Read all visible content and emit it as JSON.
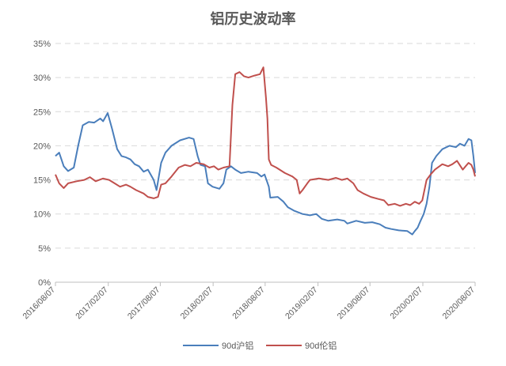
{
  "chart_data": {
    "type": "line",
    "title": "铝历史波动率",
    "xlabel": "",
    "ylabel": "",
    "ylim": [
      0,
      35
    ],
    "y_tick_labels": [
      "0%",
      "5%",
      "10%",
      "15%",
      "20%",
      "25%",
      "30%",
      "35%"
    ],
    "x_range": [
      "2016/08/07",
      "2020/08/07"
    ],
    "x_tick_labels": [
      "2016/08/07",
      "2017/02/07",
      "2017/08/07",
      "2018/02/07",
      "2018/08/07",
      "2019/02/07",
      "2019/08/07",
      "2020/02/07",
      "2020/08/07"
    ],
    "grid": "horizontal-dashed",
    "legend_position": "bottom",
    "series": [
      {
        "name": "90d沪铝",
        "color": "#4a7ebb",
        "points": [
          [
            "2016/08/07",
            18.5
          ],
          [
            "2016/08/20",
            19.0
          ],
          [
            "2016/09/05",
            17.0
          ],
          [
            "2016/09/20",
            16.3
          ],
          [
            "2016/10/10",
            16.8
          ],
          [
            "2016/10/25",
            20.0
          ],
          [
            "2016/11/10",
            23.0
          ],
          [
            "2016/12/01",
            23.5
          ],
          [
            "2016/12/20",
            23.4
          ],
          [
            "2017/01/10",
            24.0
          ],
          [
            "2017/01/20",
            23.6
          ],
          [
            "2017/02/05",
            24.8
          ],
          [
            "2017/02/20",
            22.5
          ],
          [
            "2017/03/10",
            19.5
          ],
          [
            "2017/03/25",
            18.5
          ],
          [
            "2017/04/10",
            18.3
          ],
          [
            "2017/04/25",
            18.0
          ],
          [
            "2017/05/10",
            17.3
          ],
          [
            "2017/05/25",
            17.0
          ],
          [
            "2017/06/10",
            16.2
          ],
          [
            "2017/06/25",
            16.5
          ],
          [
            "2017/07/15",
            15.0
          ],
          [
            "2017/07/25",
            13.5
          ],
          [
            "2017/08/10",
            17.5
          ],
          [
            "2017/08/25",
            19.0
          ],
          [
            "2017/09/15",
            20.0
          ],
          [
            "2017/10/15",
            20.8
          ],
          [
            "2017/11/15",
            21.2
          ],
          [
            "2017/12/01",
            21.0
          ],
          [
            "2017/12/15",
            18.5
          ],
          [
            "2017/12/25",
            17.2
          ],
          [
            "2018/01/10",
            17.0
          ],
          [
            "2018/01/20",
            14.5
          ],
          [
            "2018/02/05",
            14.0
          ],
          [
            "2018/03/01",
            13.7
          ],
          [
            "2018/03/15",
            14.5
          ],
          [
            "2018/03/25",
            16.5
          ],
          [
            "2018/04/10",
            17.0
          ],
          [
            "2018/04/25",
            16.5
          ],
          [
            "2018/05/15",
            16.0
          ],
          [
            "2018/06/10",
            16.2
          ],
          [
            "2018/07/10",
            16.0
          ],
          [
            "2018/07/25",
            15.5
          ],
          [
            "2018/08/05",
            15.8
          ],
          [
            "2018/08/20",
            14.0
          ],
          [
            "2018/08/25",
            12.4
          ],
          [
            "2018/09/20",
            12.5
          ],
          [
            "2018/10/10",
            11.8
          ],
          [
            "2018/10/25",
            11.0
          ],
          [
            "2018/11/15",
            10.5
          ],
          [
            "2018/12/15",
            10.0
          ],
          [
            "2019/01/10",
            9.8
          ],
          [
            "2019/02/01",
            10.0
          ],
          [
            "2019/02/20",
            9.3
          ],
          [
            "2019/03/15",
            9.0
          ],
          [
            "2019/04/15",
            9.2
          ],
          [
            "2019/05/10",
            9.0
          ],
          [
            "2019/05/20",
            8.6
          ],
          [
            "2019/06/20",
            9.0
          ],
          [
            "2019/07/20",
            8.7
          ],
          [
            "2019/08/15",
            8.8
          ],
          [
            "2019/09/10",
            8.5
          ],
          [
            "2019/09/30",
            8.0
          ],
          [
            "2019/10/20",
            7.8
          ],
          [
            "2019/11/15",
            7.6
          ],
          [
            "2019/12/15",
            7.5
          ],
          [
            "2020/01/01",
            7.0
          ],
          [
            "2020/01/10",
            7.5
          ],
          [
            "2020/01/20",
            8.0
          ],
          [
            "2020/01/30",
            9.0
          ],
          [
            "2020/02/10",
            10.0
          ],
          [
            "2020/02/20",
            11.5
          ],
          [
            "2020/03/01",
            14.0
          ],
          [
            "2020/03/10",
            17.5
          ],
          [
            "2020/03/25",
            18.5
          ],
          [
            "2020/04/15",
            19.5
          ],
          [
            "2020/05/10",
            20.0
          ],
          [
            "2020/06/01",
            19.8
          ],
          [
            "2020/06/15",
            20.3
          ],
          [
            "2020/07/01",
            20.0
          ],
          [
            "2020/07/15",
            21.0
          ],
          [
            "2020/07/25",
            20.8
          ],
          [
            "2020/08/01",
            18.5
          ],
          [
            "2020/08/07",
            16.0
          ]
        ]
      },
      {
        "name": "90d伦铝",
        "color": "#c0504d",
        "points": [
          [
            "2016/08/07",
            15.8
          ],
          [
            "2016/08/20",
            14.5
          ],
          [
            "2016/09/05",
            13.8
          ],
          [
            "2016/09/20",
            14.5
          ],
          [
            "2016/10/20",
            14.8
          ],
          [
            "2016/11/15",
            15.0
          ],
          [
            "2016/12/05",
            15.4
          ],
          [
            "2016/12/25",
            14.8
          ],
          [
            "2017/01/20",
            15.2
          ],
          [
            "2017/02/10",
            15.0
          ],
          [
            "2017/03/01",
            14.5
          ],
          [
            "2017/03/20",
            14.0
          ],
          [
            "2017/04/10",
            14.3
          ],
          [
            "2017/04/25",
            14.0
          ],
          [
            "2017/05/15",
            13.5
          ],
          [
            "2017/06/10",
            13.0
          ],
          [
            "2017/06/25",
            12.5
          ],
          [
            "2017/07/15",
            12.3
          ],
          [
            "2017/07/30",
            12.5
          ],
          [
            "2017/08/10",
            14.3
          ],
          [
            "2017/08/25",
            14.5
          ],
          [
            "2017/09/15",
            15.5
          ],
          [
            "2017/10/10",
            16.8
          ],
          [
            "2017/11/01",
            17.2
          ],
          [
            "2017/11/20",
            17.0
          ],
          [
            "2017/12/10",
            17.5
          ],
          [
            "2018/01/05",
            17.3
          ],
          [
            "2018/01/25",
            16.8
          ],
          [
            "2018/02/10",
            17.0
          ],
          [
            "2018/02/25",
            16.5
          ],
          [
            "2018/03/15",
            16.8
          ],
          [
            "2018/04/05",
            17.0
          ],
          [
            "2018/04/15",
            26.0
          ],
          [
            "2018/04/25",
            30.5
          ],
          [
            "2018/05/10",
            30.8
          ],
          [
            "2018/05/25",
            30.2
          ],
          [
            "2018/06/10",
            30.0
          ],
          [
            "2018/07/01",
            30.3
          ],
          [
            "2018/07/20",
            30.5
          ],
          [
            "2018/08/01",
            31.5
          ],
          [
            "2018/08/10",
            27.0
          ],
          [
            "2018/08/15",
            24.0
          ],
          [
            "2018/08/20",
            18.0
          ],
          [
            "2018/08/28",
            17.2
          ],
          [
            "2018/09/15",
            16.8
          ],
          [
            "2018/10/15",
            16.0
          ],
          [
            "2018/11/10",
            15.5
          ],
          [
            "2018/11/25",
            15.0
          ],
          [
            "2018/12/05",
            13.0
          ],
          [
            "2018/12/15",
            13.5
          ],
          [
            "2019/01/01",
            14.5
          ],
          [
            "2019/01/10",
            15.0
          ],
          [
            "2019/02/10",
            15.2
          ],
          [
            "2019/03/15",
            15.0
          ],
          [
            "2019/04/10",
            15.3
          ],
          [
            "2019/05/01",
            15.0
          ],
          [
            "2019/05/20",
            15.2
          ],
          [
            "2019/06/10",
            14.5
          ],
          [
            "2019/06/25",
            13.5
          ],
          [
            "2019/07/15",
            13.0
          ],
          [
            "2019/08/10",
            12.5
          ],
          [
            "2019/09/05",
            12.2
          ],
          [
            "2019/09/25",
            12.0
          ],
          [
            "2019/10/10",
            11.3
          ],
          [
            "2019/11/01",
            11.5
          ],
          [
            "2019/11/20",
            11.2
          ],
          [
            "2019/12/10",
            11.5
          ],
          [
            "2019/12/25",
            11.3
          ],
          [
            "2020/01/10",
            11.8
          ],
          [
            "2020/01/25",
            11.5
          ],
          [
            "2020/02/05",
            12.0
          ],
          [
            "2020/02/20",
            15.0
          ],
          [
            "2020/03/05",
            15.8
          ],
          [
            "2020/03/20",
            16.5
          ],
          [
            "2020/04/15",
            17.3
          ],
          [
            "2020/05/05",
            17.0
          ],
          [
            "2020/05/20",
            17.3
          ],
          [
            "2020/06/05",
            17.8
          ],
          [
            "2020/06/25",
            16.5
          ],
          [
            "2020/07/05",
            17.0
          ],
          [
            "2020/07/15",
            17.5
          ],
          [
            "2020/07/25",
            17.2
          ],
          [
            "2020/08/01",
            16.5
          ],
          [
            "2020/08/07",
            15.5
          ]
        ]
      }
    ]
  }
}
